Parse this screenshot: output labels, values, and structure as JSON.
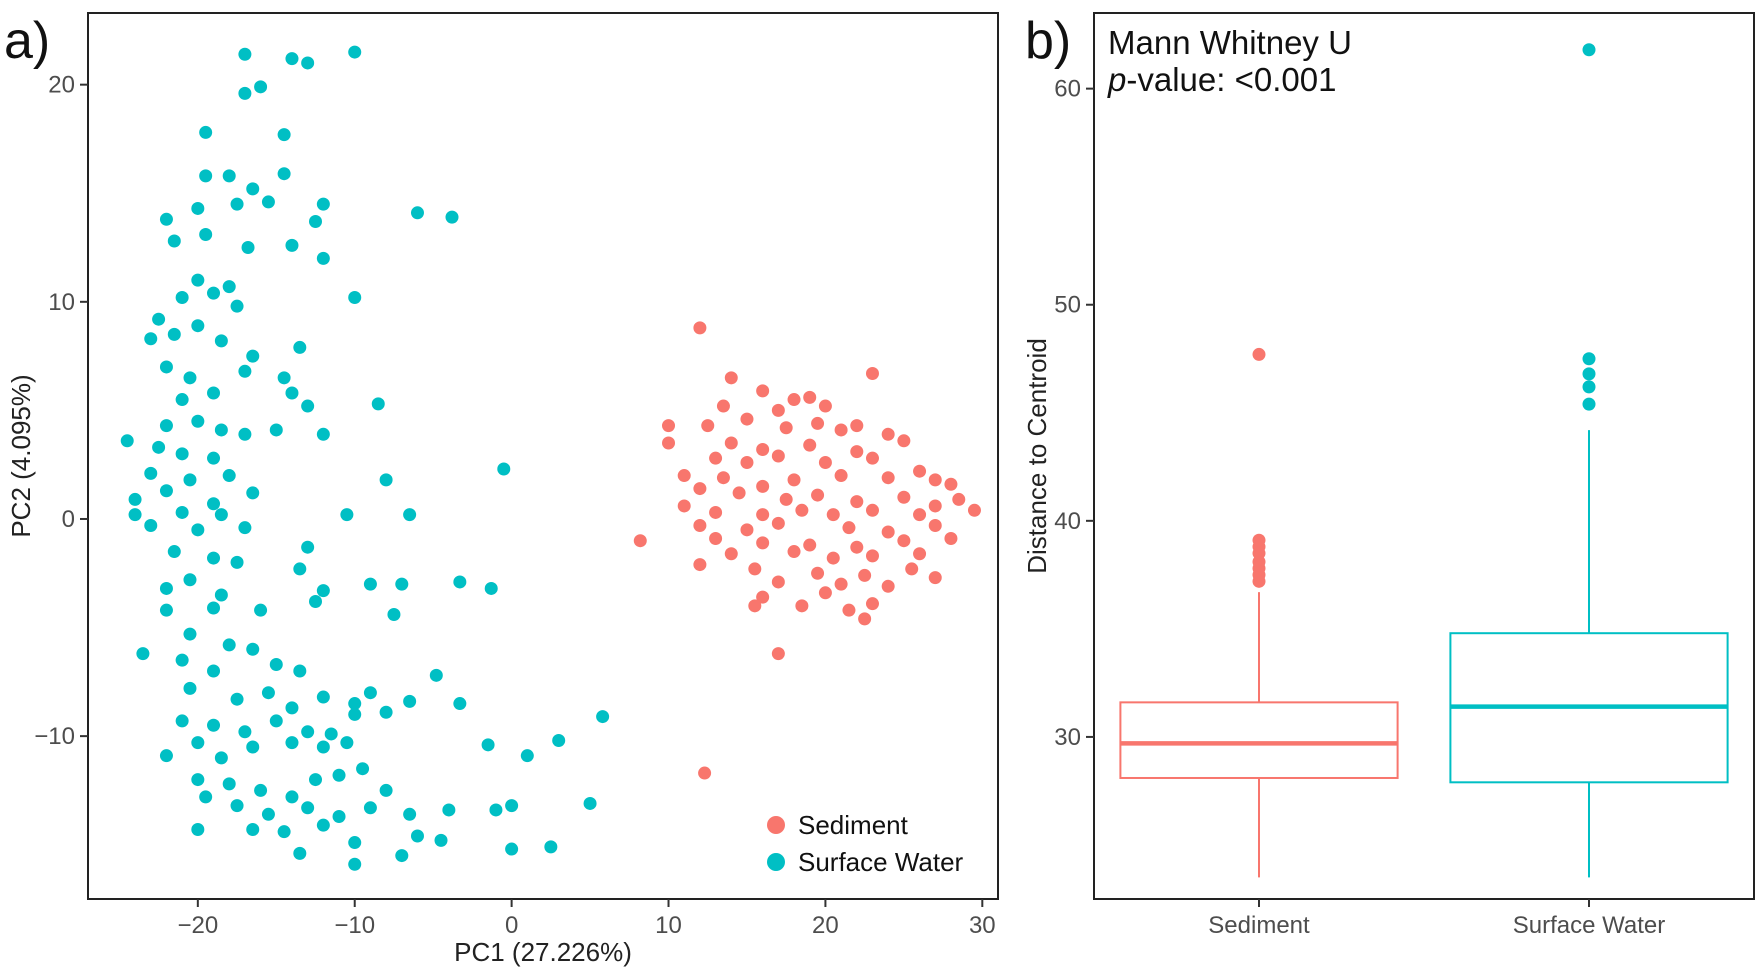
{
  "colors": {
    "sediment": "#f8766d",
    "surface_water": "#00bfc4"
  },
  "chart_data": [
    {
      "type": "scatter",
      "panel_label": "a)",
      "xlabel": "PC1 (27.226%)",
      "ylabel": "PC2 (4.095%)",
      "xlim": [
        -27,
        31
      ],
      "ylim": [
        -17.5,
        23.3
      ],
      "xticks": [
        -20,
        -10,
        0,
        10,
        20,
        30
      ],
      "yticks": [
        -10,
        0,
        10,
        20
      ],
      "xtick_labels": [
        "−20",
        "−10",
        "0",
        "10",
        "20",
        "30"
      ],
      "ytick_labels": [
        "−10",
        "0",
        "10",
        "20"
      ],
      "legend": {
        "position": "bottom-right",
        "entries": [
          "Sediment",
          "Surface Water"
        ]
      },
      "series": [
        {
          "name": "Surface Water",
          "points": [
            [
              -17,
              21.4
            ],
            [
              -14,
              21.2
            ],
            [
              -13,
              21
            ],
            [
              -10,
              21.5
            ],
            [
              -16,
              19.9
            ],
            [
              -17,
              19.6
            ],
            [
              -19.5,
              17.8
            ],
            [
              -14.5,
              17.7
            ],
            [
              -19.5,
              15.8
            ],
            [
              -18,
              15.8
            ],
            [
              -16.5,
              15.2
            ],
            [
              -14.5,
              15.9
            ],
            [
              -22,
              13.8
            ],
            [
              -20,
              14.3
            ],
            [
              -17.5,
              14.5
            ],
            [
              -15.5,
              14.6
            ],
            [
              -12,
              14.5
            ],
            [
              -12.5,
              13.7
            ],
            [
              -6,
              14.1
            ],
            [
              -3.8,
              13.9
            ],
            [
              -21.5,
              12.8
            ],
            [
              -19.5,
              13.1
            ],
            [
              -16.8,
              12.5
            ],
            [
              -14,
              12.6
            ],
            [
              -12,
              12
            ],
            [
              -20,
              11
            ],
            [
              -18,
              10.7
            ],
            [
              -21,
              10.2
            ],
            [
              -22.5,
              9.2
            ],
            [
              -19,
              10.4
            ],
            [
              -17.5,
              9.8
            ],
            [
              -10,
              10.2
            ],
            [
              -23,
              8.3
            ],
            [
              -21.5,
              8.5
            ],
            [
              -20,
              8.9
            ],
            [
              -18.5,
              8.2
            ],
            [
              -16.5,
              7.5
            ],
            [
              -13.5,
              7.9
            ],
            [
              -22,
              7
            ],
            [
              -20.5,
              6.5
            ],
            [
              -17,
              6.8
            ],
            [
              -14.5,
              6.5
            ],
            [
              -19,
              5.8
            ],
            [
              -21,
              5.5
            ],
            [
              -14,
              5.8
            ],
            [
              -13,
              5.2
            ],
            [
              -8.5,
              5.3
            ],
            [
              -22,
              4.3
            ],
            [
              -20,
              4.5
            ],
            [
              -18.5,
              4.1
            ],
            [
              -17,
              3.9
            ],
            [
              -24.5,
              3.6
            ],
            [
              -22.5,
              3.3
            ],
            [
              -21,
              3
            ],
            [
              -19,
              2.8
            ],
            [
              -15,
              4.1
            ],
            [
              -12,
              3.9
            ],
            [
              -23,
              2.1
            ],
            [
              -20.5,
              1.8
            ],
            [
              -18,
              2
            ],
            [
              -16.5,
              1.2
            ],
            [
              -22,
              1.3
            ],
            [
              -19,
              0.7
            ],
            [
              -24,
              0.9
            ],
            [
              -21,
              0.3
            ],
            [
              -18.5,
              0.2
            ],
            [
              -23,
              -0.3
            ],
            [
              -20,
              -0.5
            ],
            [
              -17,
              -0.4
            ],
            [
              -8,
              1.8
            ],
            [
              -10.5,
              0.2
            ],
            [
              -6.5,
              0.2
            ],
            [
              -0.5,
              2.3
            ],
            [
              -24,
              0.2
            ],
            [
              -21.5,
              -1.5
            ],
            [
              -19,
              -1.8
            ],
            [
              -17.5,
              -2
            ],
            [
              -22,
              -3.2
            ],
            [
              -20.5,
              -2.8
            ],
            [
              -18.5,
              -3.5
            ],
            [
              -13.5,
              -2.3
            ],
            [
              -13,
              -1.3
            ],
            [
              -12,
              -3.3
            ],
            [
              -9,
              -3
            ],
            [
              -7,
              -3
            ],
            [
              -3.3,
              -2.9
            ],
            [
              -1.3,
              -3.2
            ],
            [
              -22,
              -4.2
            ],
            [
              -19,
              -4.1
            ],
            [
              -16,
              -4.2
            ],
            [
              -12.5,
              -3.8
            ],
            [
              -7.5,
              -4.4
            ],
            [
              -20.5,
              -5.3
            ],
            [
              -18,
              -5.8
            ],
            [
              -23.5,
              -6.2
            ],
            [
              -21,
              -6.5
            ],
            [
              -19,
              -7
            ],
            [
              -16.5,
              -6
            ],
            [
              -15,
              -6.7
            ],
            [
              -13.5,
              -7
            ],
            [
              -20.5,
              -7.8
            ],
            [
              -17.5,
              -8.3
            ],
            [
              -15.5,
              -8
            ],
            [
              -14,
              -8.7
            ],
            [
              -12,
              -8.2
            ],
            [
              -10,
              -8.5
            ],
            [
              -9,
              -8
            ],
            [
              -6.5,
              -8.4
            ],
            [
              -4.8,
              -7.2
            ],
            [
              -3.3,
              -8.5
            ],
            [
              -21,
              -9.3
            ],
            [
              -19,
              -9.5
            ],
            [
              -17,
              -9.8
            ],
            [
              -15,
              -9.3
            ],
            [
              -13,
              -9.8
            ],
            [
              -11.5,
              -9.9
            ],
            [
              -10,
              -9
            ],
            [
              -8,
              -8.9
            ],
            [
              -22,
              -10.9
            ],
            [
              -20,
              -10.3
            ],
            [
              -18.5,
              -11
            ],
            [
              -16.5,
              -10.5
            ],
            [
              -14,
              -10.3
            ],
            [
              -12,
              -10.5
            ],
            [
              -10.5,
              -10.3
            ],
            [
              -1.5,
              -10.4
            ],
            [
              1,
              -10.9
            ],
            [
              3,
              -10.2
            ],
            [
              5.8,
              -9.1
            ],
            [
              -20,
              -12
            ],
            [
              -18,
              -12.2
            ],
            [
              -16,
              -12.5
            ],
            [
              -14,
              -12.8
            ],
            [
              -12.5,
              -12
            ],
            [
              -11,
              -11.8
            ],
            [
              -9.5,
              -11.5
            ],
            [
              -8,
              -12.5
            ],
            [
              -19.5,
              -12.8
            ],
            [
              -17.5,
              -13.2
            ],
            [
              -15.5,
              -13.6
            ],
            [
              -13,
              -13.3
            ],
            [
              -11,
              -13.7
            ],
            [
              -9,
              -13.3
            ],
            [
              -6.5,
              -13.6
            ],
            [
              -4,
              -13.4
            ],
            [
              -1,
              -13.4
            ],
            [
              0,
              -13.2
            ],
            [
              5,
              -13.1
            ],
            [
              -20,
              -14.3
            ],
            [
              -16.5,
              -14.3
            ],
            [
              -14.5,
              -14.4
            ],
            [
              -12,
              -14.1
            ],
            [
              -10,
              -14.9
            ],
            [
              -6,
              -14.6
            ],
            [
              -4.5,
              -14.8
            ],
            [
              -13.5,
              -15.4
            ],
            [
              -10,
              -15.9
            ],
            [
              -7,
              -15.5
            ],
            [
              0,
              -15.2
            ],
            [
              2.5,
              -15.1
            ]
          ]
        },
        {
          "name": "Sediment",
          "points": [
            [
              12,
              8.8
            ],
            [
              23,
              6.7
            ],
            [
              14,
              6.5
            ],
            [
              16,
              5.9
            ],
            [
              18,
              5.5
            ],
            [
              19,
              5.6
            ],
            [
              13.5,
              5.2
            ],
            [
              17,
              5
            ],
            [
              20,
              5.2
            ],
            [
              15,
              4.6
            ],
            [
              17.5,
              4.2
            ],
            [
              19.5,
              4.4
            ],
            [
              10,
              4.3
            ],
            [
              12.5,
              4.3
            ],
            [
              21,
              4.1
            ],
            [
              22,
              4.3
            ],
            [
              24,
              3.9
            ],
            [
              10,
              3.5
            ],
            [
              14,
              3.5
            ],
            [
              16,
              3.2
            ],
            [
              19,
              3.4
            ],
            [
              22,
              3.1
            ],
            [
              25,
              3.6
            ],
            [
              13,
              2.8
            ],
            [
              15,
              2.6
            ],
            [
              17,
              2.9
            ],
            [
              20,
              2.6
            ],
            [
              23,
              2.8
            ],
            [
              26,
              2.2
            ],
            [
              11,
              2
            ],
            [
              13.5,
              1.9
            ],
            [
              16,
              1.5
            ],
            [
              18,
              1.8
            ],
            [
              21,
              2
            ],
            [
              24,
              1.9
            ],
            [
              27,
              1.8
            ],
            [
              28,
              1.6
            ],
            [
              12,
              1.4
            ],
            [
              14.5,
              1.2
            ],
            [
              17.5,
              0.9
            ],
            [
              19.5,
              1.1
            ],
            [
              22,
              0.8
            ],
            [
              25,
              1
            ],
            [
              27,
              0.6
            ],
            [
              28.5,
              0.9
            ],
            [
              11,
              0.6
            ],
            [
              13,
              0.3
            ],
            [
              16,
              0.2
            ],
            [
              18.5,
              0.4
            ],
            [
              20.5,
              0.2
            ],
            [
              23,
              0.4
            ],
            [
              26,
              0.2
            ],
            [
              29.5,
              0.4
            ],
            [
              12,
              -0.3
            ],
            [
              15,
              -0.5
            ],
            [
              17,
              -0.2
            ],
            [
              21.5,
              -0.4
            ],
            [
              24,
              -0.6
            ],
            [
              27,
              -0.3
            ],
            [
              8.2,
              -1
            ],
            [
              13,
              -0.9
            ],
            [
              16,
              -1.1
            ],
            [
              19,
              -1.2
            ],
            [
              22,
              -1.3
            ],
            [
              25,
              -1
            ],
            [
              28,
              -0.9
            ],
            [
              14,
              -1.6
            ],
            [
              18,
              -1.5
            ],
            [
              20.5,
              -1.8
            ],
            [
              23,
              -1.7
            ],
            [
              26,
              -1.6
            ],
            [
              12,
              -2.1
            ],
            [
              15.5,
              -2.3
            ],
            [
              19.5,
              -2.5
            ],
            [
              22.5,
              -2.6
            ],
            [
              25.5,
              -2.3
            ],
            [
              27,
              -2.7
            ],
            [
              17,
              -2.9
            ],
            [
              21,
              -3
            ],
            [
              24,
              -3.1
            ],
            [
              16,
              -3.6
            ],
            [
              20,
              -3.4
            ],
            [
              23,
              -3.9
            ],
            [
              15.5,
              -4
            ],
            [
              18.5,
              -4
            ],
            [
              21.5,
              -4.2
            ],
            [
              22.5,
              -4.6
            ],
            [
              17,
              -6.2
            ],
            [
              12.3,
              -11.7
            ]
          ]
        }
      ]
    },
    {
      "type": "boxplot",
      "panel_label": "b)",
      "ylabel": "Distance to Centroid",
      "ylim": [
        22.5,
        63.5
      ],
      "yticks": [
        30,
        40,
        50,
        60
      ],
      "ytick_labels": [
        "30",
        "40",
        "50",
        "60"
      ],
      "annotation": {
        "line1": "Mann Whitney U",
        "p_label": "p",
        "p_rest": "-value: <0.001"
      },
      "categories": [
        "Sediment",
        "Surface Water"
      ],
      "boxes": [
        {
          "name": "Sediment",
          "whisker_low": 23.5,
          "q1": 28.1,
          "median": 29.7,
          "q3": 31.6,
          "whisker_high": 36.7,
          "outliers": [
            37.2,
            37.5,
            37.8,
            38.1,
            38.5,
            38.8,
            39.1,
            47.7
          ]
        },
        {
          "name": "Surface Water",
          "whisker_low": 23.5,
          "q1": 27.9,
          "median": 31.4,
          "q3": 34.8,
          "whisker_high": 44.2,
          "outliers": [
            45.4,
            46.2,
            46.8,
            47.5,
            61.8
          ]
        }
      ]
    }
  ]
}
